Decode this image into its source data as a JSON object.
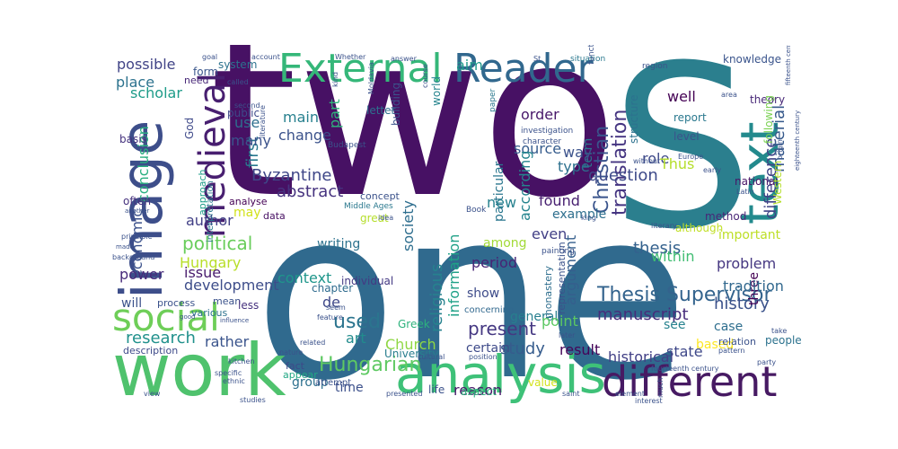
{
  "words": [
    {
      "t": "two",
      "c": "#471164"
    },
    {
      "t": "one",
      "c": "#306a8e"
    },
    {
      "t": "S",
      "c": "#2b7f8e"
    },
    {
      "t": "work",
      "c": "#4fc26d"
    },
    {
      "t": "image",
      "c": "#3d4e8a"
    },
    {
      "t": "analysis",
      "c": "#3ec178"
    },
    {
      "t": "different",
      "c": "#471a63"
    },
    {
      "t": "text",
      "c": "#238a8d"
    },
    {
      "t": "External",
      "c": "#35b779"
    },
    {
      "t": "Reader",
      "c": "#31688e"
    },
    {
      "t": "medieval",
      "c": "#481f70"
    },
    {
      "t": "social",
      "c": "#6ece58"
    },
    {
      "t": "Thesis Supervisor",
      "c": "#33638d"
    },
    {
      "t": "Christian",
      "c": "#3a548c"
    },
    {
      "t": "translation",
      "c": "#453581"
    },
    {
      "t": "Byzantine",
      "c": "#3f4788"
    },
    {
      "t": "Hungarian",
      "c": "#5ec962"
    },
    {
      "t": "political",
      "c": "#69cd5b"
    },
    {
      "t": "history",
      "c": "#3b528b"
    },
    {
      "t": "thesis",
      "c": "#34618d"
    },
    {
      "t": "used",
      "c": "#2b748e"
    },
    {
      "t": "study",
      "c": "#365c8d"
    },
    {
      "t": "question",
      "c": "#3e4a89"
    },
    {
      "t": "development",
      "c": "#3d4d8a"
    },
    {
      "t": "abstract",
      "c": "#46337f"
    },
    {
      "t": "present",
      "c": "#453882"
    },
    {
      "t": "research",
      "c": "#21918c"
    },
    {
      "t": "conclusion",
      "c": "#29af7f"
    },
    {
      "t": "difference",
      "c": "#404387"
    },
    {
      "t": "material",
      "c": "#375a8c"
    },
    {
      "t": "economic",
      "c": "#3b518b"
    },
    {
      "t": "religious",
      "c": "#26828e"
    },
    {
      "t": "information",
      "c": "#1fa187"
    },
    {
      "t": "context",
      "c": "#1f968b"
    },
    {
      "t": "period",
      "c": "#482475"
    },
    {
      "t": "argument",
      "c": "#355f8d"
    },
    {
      "t": "manuscript",
      "c": "#472d7b"
    },
    {
      "t": "scholar",
      "c": "#1e9c89"
    },
    {
      "t": "possible",
      "c": "#414487"
    },
    {
      "t": "place",
      "c": "#2c728e"
    },
    {
      "t": "first",
      "c": "#2a788e"
    },
    {
      "t": "main",
      "c": "#27808e"
    },
    {
      "t": "part",
      "c": "#2fb47c"
    },
    {
      "t": "change",
      "c": "#3b528b"
    },
    {
      "t": "source",
      "c": "#365c8d"
    },
    {
      "t": "order",
      "c": "#48186a"
    },
    {
      "t": "well",
      "c": "#440154"
    },
    {
      "t": "role",
      "c": "#3e4989"
    },
    {
      "t": "Thus",
      "c": "#b5de2b"
    },
    {
      "t": "type",
      "c": "#2d708e"
    },
    {
      "t": "term",
      "c": "#2a768e"
    },
    {
      "t": "found",
      "c": "#482071"
    },
    {
      "t": "example",
      "c": "#2e6f8e"
    },
    {
      "t": "even",
      "c": "#424086"
    },
    {
      "t": "among",
      "c": "#a2da37"
    },
    {
      "t": "according",
      "c": "#25848e"
    },
    {
      "t": "society",
      "c": "#2e6e8e"
    },
    {
      "t": "particular",
      "c": "#2a768e"
    },
    {
      "t": "new",
      "c": "#26818e"
    },
    {
      "t": "Hungary",
      "c": "#b8de29"
    },
    {
      "t": "author",
      "c": "#424086"
    },
    {
      "t": "power",
      "c": "#472a7a"
    },
    {
      "t": "issue",
      "c": "#481b6d"
    },
    {
      "t": "de",
      "c": "#3f4889"
    },
    {
      "t": "art",
      "c": "#228c8d"
    },
    {
      "t": "general",
      "c": "#277f8e"
    },
    {
      "t": "show",
      "c": "#3e4c8a"
    },
    {
      "t": "certain",
      "c": "#3e4a89"
    },
    {
      "t": "point",
      "c": "#5cc863"
    },
    {
      "t": "result",
      "c": "#450559"
    },
    {
      "t": "Church",
      "c": "#8fd744"
    },
    {
      "t": "time",
      "c": "#3c508b"
    },
    {
      "t": "group",
      "c": "#2d708e"
    },
    {
      "t": "reason",
      "c": "#48186a"
    },
    {
      "t": "rather",
      "c": "#3a548c"
    },
    {
      "t": "historical",
      "c": "#424086"
    },
    {
      "t": "state",
      "c": "#3f4889"
    },
    {
      "t": "based",
      "c": "#fde725"
    },
    {
      "t": "case",
      "c": "#2e6e8e"
    },
    {
      "t": "see",
      "c": "#26828e"
    },
    {
      "t": "three",
      "c": "#440154"
    },
    {
      "t": "problem",
      "c": "#453781"
    },
    {
      "t": "important",
      "c": "#bddf26"
    },
    {
      "t": "tradition",
      "c": "#31688e"
    },
    {
      "t": "within",
      "c": "#40bd72"
    },
    {
      "t": "many",
      "c": "#3b528b"
    },
    {
      "t": "use",
      "c": "#2e6e8e"
    },
    {
      "t": "may",
      "c": "#d2e21b"
    },
    {
      "t": "will",
      "c": "#3b528b"
    },
    {
      "t": "University",
      "c": "#287d8e"
    },
    {
      "t": "Greek",
      "c": "#2db27d"
    },
    {
      "t": "writing",
      "c": "#2c728e"
    },
    {
      "t": "individual",
      "c": "#443983"
    },
    {
      "t": "chapter",
      "c": "#2f6b8e"
    },
    {
      "t": "knowledge",
      "c": "#3a548c"
    },
    {
      "t": "report",
      "c": "#2a788e"
    },
    {
      "t": "level",
      "c": "#3b528b"
    },
    {
      "t": "theory",
      "c": "#482878"
    },
    {
      "t": "national",
      "c": "#481467"
    },
    {
      "t": "method",
      "c": "#482677"
    },
    {
      "t": "Western",
      "c": "#b5de2b"
    },
    {
      "t": "although",
      "c": "#c0df25"
    },
    {
      "t": "following",
      "c": "#7ad151"
    },
    {
      "t": "system",
      "c": "#2c728e"
    },
    {
      "t": "form",
      "c": "#39568c"
    },
    {
      "t": "God",
      "c": "#3e4989"
    },
    {
      "t": "public",
      "c": "#3e4989"
    },
    {
      "t": "letter",
      "c": "#2d708e"
    },
    {
      "t": "building",
      "c": "#3b528b"
    },
    {
      "t": "world",
      "c": "#25848e"
    },
    {
      "t": "structure",
      "c": "#2c728e"
    },
    {
      "t": "concept",
      "c": "#3b528b"
    },
    {
      "t": "great",
      "c": "#b5de2b"
    },
    {
      "t": "data",
      "c": "#471063"
    },
    {
      "t": "analyse",
      "c": "#440154"
    },
    {
      "t": "approach",
      "c": "#1f9e89"
    },
    {
      "t": "interpretation",
      "c": "#2a788e"
    },
    {
      "t": "often",
      "c": "#46327e"
    },
    {
      "t": "basis",
      "c": "#46337f"
    },
    {
      "t": "need",
      "c": "#482878"
    },
    {
      "t": "aim",
      "c": "#1f9a8a"
    },
    {
      "t": "way",
      "c": "#3b528b"
    },
    {
      "t": "process",
      "c": "#3b528b"
    },
    {
      "t": "mean",
      "c": "#3b528b"
    },
    {
      "t": "various",
      "c": "#2c728e"
    },
    {
      "t": "less",
      "c": "#46327e"
    },
    {
      "t": "description",
      "c": "#3e4a89"
    },
    {
      "t": "fact",
      "c": "#3e4989"
    },
    {
      "t": "appear",
      "c": "#22a884"
    },
    {
      "t": "attempt",
      "c": "#3b528b"
    },
    {
      "t": "concerning",
      "c": "#31688e"
    },
    {
      "t": "monastery",
      "c": "#2e6e8e"
    },
    {
      "t": "representation",
      "c": "#3b528b"
    },
    {
      "t": "value",
      "c": "#d2e21b"
    },
    {
      "t": "aspect",
      "c": "#2db27d"
    },
    {
      "t": "life",
      "c": "#3b528b"
    },
    {
      "t": "people",
      "c": "#2c728e"
    },
    {
      "t": "relation",
      "c": "#3b528b"
    },
    {
      "t": "situation",
      "c": "#2a788e"
    },
    {
      "t": "region",
      "c": "#3b528b"
    },
    {
      "t": "character",
      "c": "#3b528b"
    },
    {
      "t": "investigation",
      "c": "#3b528b"
    },
    {
      "t": "paper",
      "c": "#2a788e"
    },
    {
      "t": "function",
      "c": "#3b528b"
    },
    {
      "t": "Moldavia",
      "c": "#3b528b"
    },
    {
      "t": "Budapest",
      "c": "#3b528b"
    },
    {
      "t": "Middle Ages",
      "c": "#2a788e"
    },
    {
      "t": "Book",
      "c": "#3b528b"
    },
    {
      "t": "idea",
      "c": "#3b528b"
    },
    {
      "t": "painting",
      "c": "#3b528b"
    },
    {
      "t": "king",
      "c": "#3b528b"
    },
    {
      "t": "literary",
      "c": "#3b528b"
    },
    {
      "t": "Latin",
      "c": "#3b528b"
    },
    {
      "t": "origin",
      "c": "#3b528b"
    },
    {
      "t": "early",
      "c": "#3b528b"
    },
    {
      "t": "Europe",
      "c": "#3b528b"
    },
    {
      "t": "without",
      "c": "#3b528b"
    },
    {
      "t": "answer",
      "c": "#3b528b"
    },
    {
      "t": "Whether",
      "c": "#3b528b"
    },
    {
      "t": "account",
      "c": "#3b528b"
    },
    {
      "t": "goal",
      "c": "#3b528b"
    },
    {
      "t": "called",
      "c": "#3b528b"
    },
    {
      "t": "second",
      "c": "#3b528b"
    },
    {
      "t": "St",
      "c": "#3b528b"
    },
    {
      "t": "later",
      "c": "#3b528b"
    },
    {
      "t": "kind",
      "c": "#3b528b"
    },
    {
      "t": "course",
      "c": "#3b528b"
    },
    {
      "t": "literature",
      "c": "#3b528b"
    },
    {
      "t": "area",
      "c": "#3b528b"
    },
    {
      "t": "fourteenth century",
      "c": "#3b528b"
    },
    {
      "t": "element",
      "c": "#3b528b"
    },
    {
      "t": "interest",
      "c": "#3b528b"
    },
    {
      "t": "much",
      "c": "#3b528b"
    },
    {
      "t": "party",
      "c": "#3b528b"
    },
    {
      "t": "pattern",
      "c": "#3b528b"
    },
    {
      "t": "take",
      "c": "#3b528b"
    },
    {
      "t": "position",
      "c": "#3b528b"
    },
    {
      "t": "saint",
      "c": "#3b528b"
    },
    {
      "t": "cultural",
      "c": "#3b528b"
    },
    {
      "t": "presented",
      "c": "#3b528b"
    },
    {
      "t": "view",
      "c": "#3b528b"
    },
    {
      "t": "kitchen",
      "c": "#3b528b"
    },
    {
      "t": "specific",
      "c": "#3b528b"
    },
    {
      "t": "ethnic",
      "c": "#3b528b"
    },
    {
      "t": "studies",
      "c": "#3b528b"
    },
    {
      "t": "nature",
      "c": "#3b528b"
    },
    {
      "t": "related",
      "c": "#3b528b"
    },
    {
      "t": "seem",
      "c": "#3b528b"
    },
    {
      "t": "feature",
      "c": "#3b528b"
    },
    {
      "t": "influence",
      "c": "#3b528b"
    },
    {
      "t": "principle",
      "c": "#3b528b"
    },
    {
      "t": "made",
      "c": "#3b528b"
    },
    {
      "t": "another",
      "c": "#3b528b"
    },
    {
      "t": "background",
      "c": "#3b528b"
    },
    {
      "t": "good",
      "c": "#3b528b"
    },
    {
      "t": "fifteenth century",
      "c": "#3b528b"
    },
    {
      "t": "eighteenth century",
      "c": "#3b528b"
    }
  ]
}
